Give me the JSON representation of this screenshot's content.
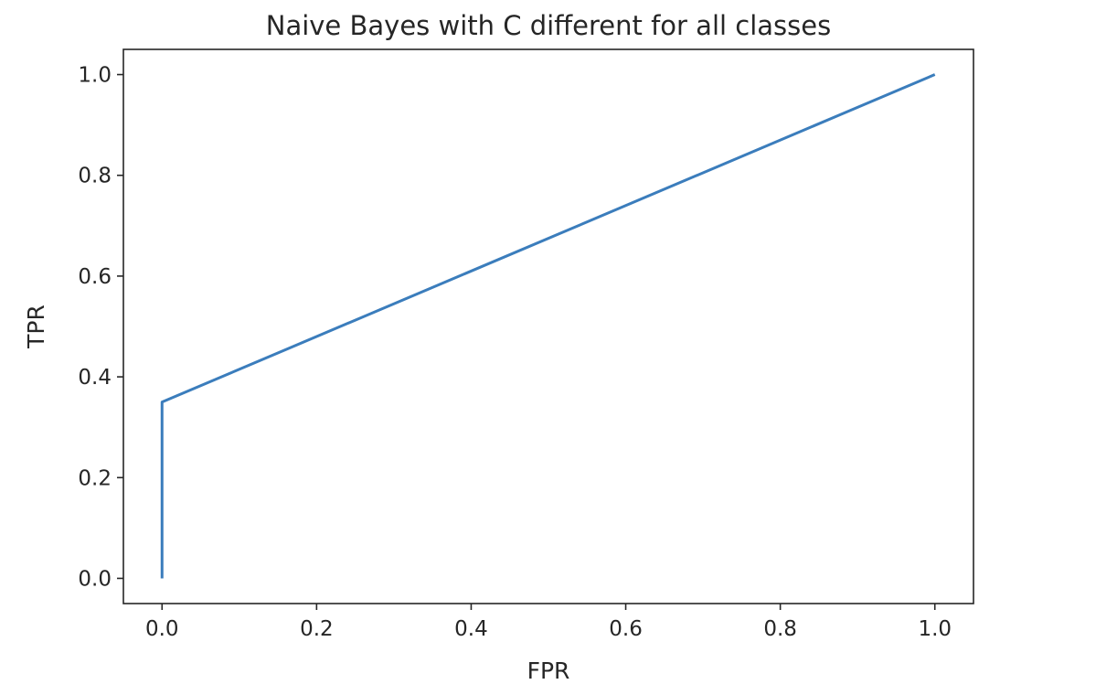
{
  "chart_data": {
    "type": "line",
    "title": "Naive Bayes with C different for all classes",
    "xlabel": "FPR",
    "ylabel": "TPR",
    "xlim": [
      -0.05,
      1.05
    ],
    "ylim": [
      -0.05,
      1.05
    ],
    "xticks": [
      "0.0",
      "0.2",
      "0.4",
      "0.6",
      "0.8",
      "1.0"
    ],
    "yticks": [
      "0.0",
      "0.2",
      "0.4",
      "0.6",
      "0.8",
      "1.0"
    ],
    "grid": false,
    "series": [
      {
        "color": "#3b7dbc",
        "x": [
          0.0,
          0.0,
          1.0
        ],
        "y": [
          0.0,
          0.35,
          1.0
        ]
      }
    ]
  }
}
